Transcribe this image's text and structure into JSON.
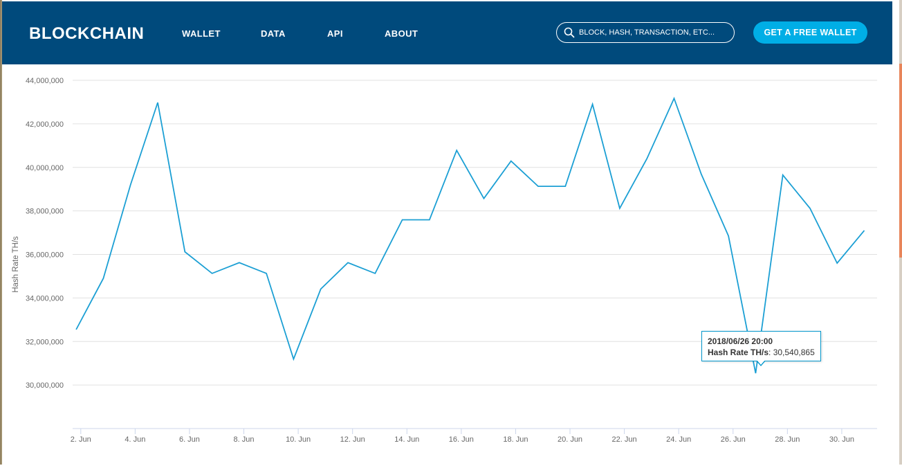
{
  "header": {
    "logo": "BLOCKCHAIN",
    "nav": [
      "WALLET",
      "DATA",
      "API",
      "ABOUT"
    ],
    "search_placeholder": "BLOCK, HASH, TRANSACTION, ETC...",
    "cta_label": "GET A FREE WALLET",
    "background_color": "#004a7c",
    "cta_color": "#00aee6"
  },
  "chart_data": {
    "type": "line",
    "ylabel": "Hash Rate TH/s",
    "xlabel": "",
    "ylim": [
      28000000,
      44000000
    ],
    "y_ticks": [
      30000000,
      32000000,
      34000000,
      36000000,
      38000000,
      40000000,
      42000000,
      44000000
    ],
    "y_tick_labels": [
      "30,000,000",
      "32,000,000",
      "34,000,000",
      "36,000,000",
      "38,000,000",
      "40,000,000",
      "42,000,000",
      "44,000,000"
    ],
    "x_tick_labels": [
      "2. Jun",
      "4. Jun",
      "6. Jun",
      "8. Jun",
      "10. Jun",
      "12. Jun",
      "14. Jun",
      "16. Jun",
      "18. Jun",
      "20. Jun",
      "22. Jun",
      "24. Jun",
      "26. Jun",
      "28. Jun",
      "30. Jun"
    ],
    "x_tick_days": [
      2,
      4,
      6,
      8,
      10,
      12,
      14,
      16,
      18,
      20,
      22,
      24,
      26,
      28,
      30
    ],
    "x_range_days": [
      1.7,
      31.3
    ],
    "grid": true,
    "series_color": "#1b9fd4",
    "series": [
      {
        "name": "Hash Rate TH/s",
        "x": [
          1.83,
          2.83,
          3.83,
          4.83,
          5.83,
          6.83,
          7.83,
          8.83,
          9.83,
          10.83,
          11.83,
          12.83,
          13.83,
          14.83,
          15.83,
          16.83,
          17.83,
          18.83,
          19.83,
          20.83,
          21.83,
          22.83,
          23.83,
          24.83,
          25.83,
          26.83,
          27.83,
          28.83,
          29.83,
          30.83
        ],
        "values": [
          32550000,
          34900000,
          39200000,
          42980000,
          36120000,
          35130000,
          35620000,
          35130000,
          31190000,
          34410000,
          35620000,
          35130000,
          37590000,
          37590000,
          40780000,
          38570000,
          40290000,
          39130000,
          39130000,
          42900000,
          38120000,
          40400000,
          43170000,
          39690000,
          36850000,
          30540865,
          39650000,
          38120000,
          35600000,
          37100000
        ]
      }
    ],
    "tooltip": {
      "date": "2018/06/26 20:00",
      "label": "Hash Rate TH/s",
      "value": "30,540,865"
    }
  }
}
